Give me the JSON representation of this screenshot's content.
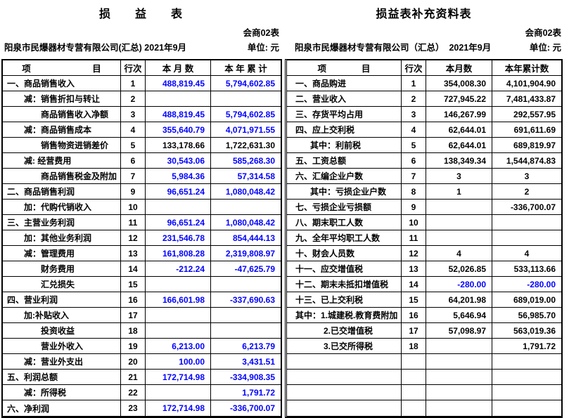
{
  "colors": {
    "value_blue": "#0000ff",
    "text_black": "#000000"
  },
  "left_table": {
    "title": "损　　益　　表",
    "form_no": "会商02表",
    "company": "阳泉市民爆器材专营有限公司(汇总) 2021年9月",
    "unit": "单位: 元",
    "headers": {
      "item": "项　　　　　　　目",
      "line_no": "行次",
      "month": "本 月 数",
      "ytd": "本 年 累 计"
    },
    "rows": [
      {
        "item": "一、商品销售收入",
        "indent": 0,
        "no": "1",
        "month": "488,819.45",
        "ytd": "5,794,602.85",
        "color": "blue"
      },
      {
        "item": "减：销售折扣与转让",
        "indent": 1,
        "no": "2",
        "month": "",
        "ytd": "",
        "color": "blue"
      },
      {
        "item": "商品销售收入净额",
        "indent": 2,
        "no": "3",
        "month": "488,819.45",
        "ytd": "5,794,602.85",
        "color": "blue"
      },
      {
        "item": "减：商品销售成本",
        "indent": 1,
        "no": "4",
        "month": "355,640.79",
        "ytd": "4,071,971.55",
        "color": "blue"
      },
      {
        "item": "销售物资进销差价",
        "indent": 2,
        "no": "5",
        "month": "133,178.66",
        "ytd": "1,722,631.30",
        "color": "black"
      },
      {
        "item": "减: 经营费用",
        "indent": 1,
        "no": "6",
        "month": "30,543.06",
        "ytd": "585,268.30",
        "color": "blue"
      },
      {
        "item": "商品销售税金及附加",
        "indent": 2,
        "no": "7",
        "month": "5,984.36",
        "ytd": "57,314.58",
        "color": "blue"
      },
      {
        "item": "二、商品销售利润",
        "indent": 0,
        "no": "9",
        "month": "96,651.24",
        "ytd": "1,080,048.42",
        "color": "blue"
      },
      {
        "item": "加：代购代销收入",
        "indent": 1,
        "no": "10",
        "month": "",
        "ytd": "",
        "color": "blue"
      },
      {
        "item": "三、主营业务利润",
        "indent": 0,
        "no": "11",
        "month": "96,651.24",
        "ytd": "1,080,048.42",
        "color": "blue"
      },
      {
        "item": "加：其他业务利润",
        "indent": 1,
        "no": "12",
        "month": "231,546.78",
        "ytd": "854,444.13",
        "color": "blue"
      },
      {
        "item": "减：管理费用",
        "indent": 1,
        "no": "13",
        "month": "161,808.28",
        "ytd": "2,319,808.97",
        "color": "blue"
      },
      {
        "item": "财务费用",
        "indent": 2,
        "no": "14",
        "month": "-212.24",
        "ytd": "-47,625.79",
        "color": "blue"
      },
      {
        "item": "汇兑损失",
        "indent": 2,
        "no": "15",
        "month": "",
        "ytd": "",
        "color": "blue"
      },
      {
        "item": "四、营业利润",
        "indent": 0,
        "no": "16",
        "month": "166,601.98",
        "ytd": "-337,690.63",
        "color": "blue"
      },
      {
        "item": "加:补贴收入",
        "indent": 1,
        "no": "17",
        "month": "",
        "ytd": "",
        "color": "blue"
      },
      {
        "item": "投资收益",
        "indent": 2,
        "no": "18",
        "month": "",
        "ytd": "",
        "color": "blue"
      },
      {
        "item": "营业外收入",
        "indent": 2,
        "no": "19",
        "month": "6,213.00",
        "ytd": "6,213.79",
        "color": "blue"
      },
      {
        "item": "减：营业外支出",
        "indent": 1,
        "no": "20",
        "month": "100.00",
        "ytd": "3,431.51",
        "color": "blue"
      },
      {
        "item": "五、利润总额",
        "indent": 0,
        "no": "21",
        "month": "172,714.98",
        "ytd": "-334,908.35",
        "color": "blue"
      },
      {
        "item": "减：所得税",
        "indent": 1,
        "no": "22",
        "month": "",
        "ytd": "1,791.72",
        "color": "blue"
      },
      {
        "item": "六、净利润",
        "indent": 0,
        "no": "23",
        "month": "172,714.98",
        "ytd": "-336,700.07",
        "color": "blue"
      }
    ]
  },
  "right_table": {
    "title": "损益表补充资料表",
    "form_no": "会商02表",
    "company": "阳泉市民爆器材专营有限公司（汇总）  2021年9月",
    "unit": "单位: 元",
    "headers": {
      "item": "项　　　　目",
      "line_no": "行次",
      "month": "本月数",
      "ytd": "本年累计数"
    },
    "rows": [
      {
        "item": "一、商品购进",
        "indent": 0,
        "no": "1",
        "month": "354,008.30",
        "ytd": "4,101,904.90",
        "color": "black"
      },
      {
        "item": "二、营业收入",
        "indent": 0,
        "no": "2",
        "month": "727,945.22",
        "ytd": "7,481,433.87",
        "color": "black"
      },
      {
        "item": "三、存货平均占用",
        "indent": 0,
        "no": "3",
        "month": "146,267.99",
        "ytd": "292,557.95",
        "color": "black"
      },
      {
        "item": "四、应上交利税",
        "indent": 0,
        "no": "4",
        "month": "62,644.01",
        "ytd": "691,611.69",
        "color": "black"
      },
      {
        "item": "其中：利前税",
        "indent": 1,
        "no": "5",
        "month": "62,644.01",
        "ytd": "689,819.97",
        "color": "black"
      },
      {
        "item": "五、工资总额",
        "indent": 0,
        "no": "6",
        "month": "138,349.34",
        "ytd": "1,544,874.83",
        "color": "black"
      },
      {
        "item": "六、汇编企业户数",
        "indent": 0,
        "no": "7",
        "month": "3",
        "ytd": "3",
        "color": "black",
        "center": true
      },
      {
        "item": "其中：亏损企业户数",
        "indent": 1,
        "no": "8",
        "month": "1",
        "ytd": "2",
        "color": "black",
        "center": true
      },
      {
        "item": "七、亏损企业亏损额",
        "indent": 0,
        "no": "9",
        "month": "",
        "ytd": "-336,700.07",
        "color": "black"
      },
      {
        "item": "八、期末职工人数",
        "indent": 0,
        "no": "10",
        "month": "",
        "ytd": "",
        "color": "black"
      },
      {
        "item": "九、全年平均职工人数",
        "indent": 0,
        "no": "11",
        "month": "",
        "ytd": "",
        "color": "black"
      },
      {
        "item": "十、财会人员数",
        "indent": 0,
        "no": "12",
        "month": "4",
        "ytd": "4",
        "color": "black",
        "center": true
      },
      {
        "item": "十一、应交增值税",
        "indent": 0,
        "no": "13",
        "month": "52,026.85",
        "ytd": "533,113.66",
        "color": "black"
      },
      {
        "item": "十二、期末未抵扣增值税",
        "indent": 0,
        "no": "14",
        "month": "-280.00",
        "ytd": "-280.00",
        "color": "blue"
      },
      {
        "item": "十三、已上交利税",
        "indent": 0,
        "no": "15",
        "month": "64,201.98",
        "ytd": "689,019.00",
        "color": "black"
      },
      {
        "item": "其中：1.城建税.教育费附加",
        "indent": 0,
        "no": "16",
        "month": "5,646.94",
        "ytd": "56,985.70",
        "color": "black"
      },
      {
        "item": "2.已交增值税",
        "indent": 2,
        "no": "17",
        "month": "57,098.97",
        "ytd": "563,019.36",
        "color": "black"
      },
      {
        "item": "3.已交所得税",
        "indent": 2,
        "no": "18",
        "month": "",
        "ytd": "1,791.72",
        "color": "black"
      },
      {
        "item": "",
        "indent": 0,
        "no": "",
        "month": "",
        "ytd": "",
        "color": "black"
      },
      {
        "item": "",
        "indent": 0,
        "no": "",
        "month": "",
        "ytd": "",
        "color": "black"
      },
      {
        "item": "",
        "indent": 0,
        "no": "",
        "month": "",
        "ytd": "",
        "color": "black"
      },
      {
        "item": "",
        "indent": 0,
        "no": "",
        "month": "",
        "ytd": "",
        "color": "black"
      }
    ]
  }
}
